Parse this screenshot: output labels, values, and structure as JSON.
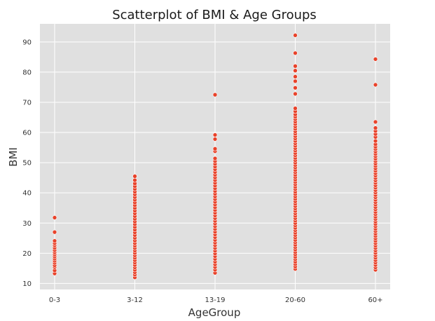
{
  "chart_data": {
    "type": "scatter",
    "title": "Scatterplot of BMI & Age Groups",
    "xlabel": "AgeGroup",
    "ylabel": "BMI",
    "categories": [
      "0-3",
      "3-12",
      "13-19",
      "20-60",
      "60+"
    ],
    "ylim": [
      8,
      96
    ],
    "yticks": [
      10,
      20,
      30,
      40,
      50,
      60,
      70,
      80,
      90
    ],
    "grid": true,
    "background": "#e0e0e0",
    "grid_color": "#ffffff",
    "marker_color": "#e8432b",
    "marker_edge": "#ffffff",
    "series": [
      {
        "values": [
          [
            13.3,
            14.3,
            15.4,
            16.0,
            16.8,
            17.5,
            18.2,
            18.9,
            19.6,
            20.3,
            21.0,
            21.8,
            22.6,
            23.3,
            24.1,
            27.0,
            31.8
          ]
        ]
      }
    ],
    "points": {
      "0-3": [
        13.3,
        14.3,
        15.4,
        16.0,
        16.8,
        17.5,
        18.2,
        18.9,
        19.6,
        20.3,
        21.0,
        21.8,
        22.6,
        23.3,
        24.1,
        27.0,
        31.8
      ],
      "3-12": [
        12.0,
        12.9,
        13.7,
        14.5,
        15.3,
        16.1,
        16.9,
        17.7,
        18.5,
        19.3,
        20.1,
        20.9,
        21.7,
        22.5,
        23.3,
        24.2,
        25.1,
        26.0,
        26.9,
        27.8,
        28.7,
        29.6,
        30.5,
        31.4,
        32.3,
        33.2,
        34.1,
        35.0,
        35.9,
        36.8,
        37.7,
        38.6,
        39.5,
        40.4,
        41.3,
        42.2,
        43.1,
        44.2,
        45.5
      ],
      "13-19": [
        13.5,
        14.5,
        15.4,
        16.3,
        17.2,
        18.1,
        19.0,
        19.9,
        20.8,
        21.7,
        22.6,
        23.5,
        24.4,
        25.3,
        26.2,
        27.1,
        28.0,
        28.9,
        29.8,
        30.7,
        31.6,
        32.5,
        33.4,
        34.3,
        35.2,
        36.1,
        37.0,
        37.9,
        38.8,
        39.7,
        40.6,
        41.5,
        42.4,
        43.3,
        44.2,
        45.1,
        46.0,
        46.9,
        47.8,
        48.7,
        49.6,
        50.5,
        51.4,
        53.8,
        54.6,
        57.8,
        59.2,
        72.5
      ],
      "20-60": [
        14.8,
        15.6,
        16.4,
        17.2,
        18.0,
        18.8,
        19.6,
        20.4,
        21.2,
        22.0,
        22.8,
        23.6,
        24.4,
        25.2,
        26.0,
        26.8,
        27.6,
        28.4,
        29.2,
        30.0,
        30.8,
        31.6,
        32.4,
        33.2,
        34.0,
        34.8,
        35.6,
        36.4,
        37.2,
        38.0,
        38.8,
        39.6,
        40.4,
        41.2,
        42.0,
        42.8,
        43.6,
        44.4,
        45.2,
        46.0,
        46.8,
        47.6,
        48.4,
        49.2,
        50.0,
        50.8,
        51.6,
        52.4,
        53.2,
        54.0,
        54.8,
        55.6,
        56.4,
        57.2,
        58.0,
        58.8,
        59.6,
        60.4,
        61.2,
        62.0,
        62.8,
        63.6,
        64.4,
        65.2,
        66.0,
        67.0,
        68.0,
        72.8,
        74.8,
        77.0,
        78.5,
        80.5,
        82.0,
        86.3,
        92.2
      ],
      "60+": [
        14.5,
        15.3,
        16.1,
        16.9,
        17.7,
        18.5,
        19.3,
        20.1,
        20.9,
        21.7,
        22.5,
        23.3,
        24.1,
        24.9,
        25.7,
        26.5,
        27.3,
        28.1,
        28.9,
        29.7,
        30.5,
        31.3,
        32.1,
        32.9,
        33.7,
        34.5,
        35.3,
        36.1,
        36.9,
        37.7,
        38.5,
        39.3,
        40.1,
        40.9,
        41.7,
        42.5,
        43.3,
        44.1,
        44.9,
        45.7,
        46.5,
        47.3,
        48.1,
        48.9,
        49.7,
        50.5,
        51.3,
        52.1,
        52.9,
        53.7,
        54.5,
        55.3,
        56.1,
        57.2,
        58.5,
        59.5,
        60.5,
        61.5,
        63.5,
        75.8,
        84.3
      ]
    }
  }
}
